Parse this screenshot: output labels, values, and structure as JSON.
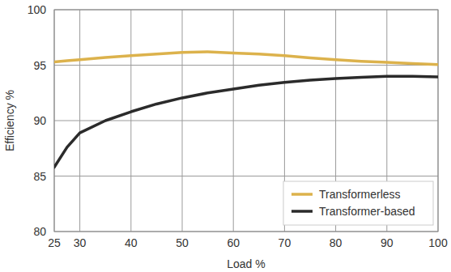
{
  "chart_data": {
    "type": "line",
    "x_label": "Load %",
    "y_label": "Efficiency %",
    "x": [
      25,
      27.5,
      30,
      35,
      40,
      45,
      50,
      55,
      60,
      65,
      70,
      75,
      80,
      85,
      90,
      95,
      100
    ],
    "series": [
      {
        "name": "Transformerless",
        "color": "#dcb24c",
        "values": [
          95.3,
          95.4,
          95.5,
          95.7,
          95.85,
          96.0,
          96.15,
          96.2,
          96.1,
          96.0,
          95.85,
          95.65,
          95.5,
          95.35,
          95.25,
          95.15,
          95.05
        ]
      },
      {
        "name": "Transformer-based",
        "color": "#2b2b2b",
        "values": [
          85.8,
          87.6,
          88.9,
          90.0,
          90.8,
          91.5,
          92.05,
          92.5,
          92.85,
          93.2,
          93.45,
          93.65,
          93.8,
          93.9,
          94.0,
          94.0,
          93.95
        ]
      }
    ],
    "xlim": [
      25,
      100
    ],
    "xticks": [
      25,
      30,
      40,
      50,
      60,
      70,
      80,
      90,
      100
    ],
    "ylim": [
      80,
      100
    ],
    "yticks": [
      80,
      85,
      90,
      95,
      100
    ],
    "grid": true,
    "legend": "lower right"
  }
}
